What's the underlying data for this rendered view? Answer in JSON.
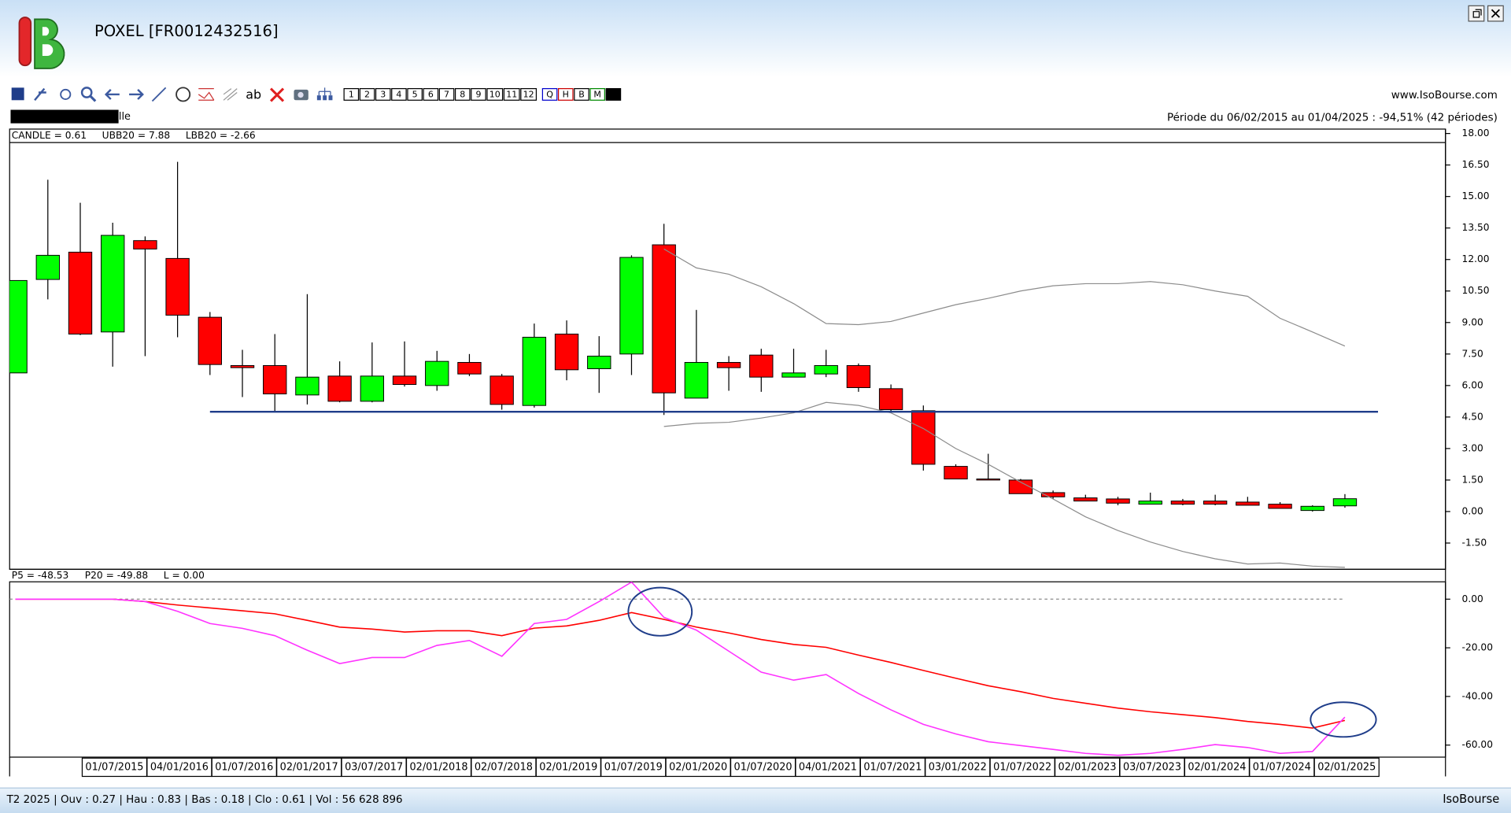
{
  "header": {
    "title": "POXEL [FR0012432516]",
    "website": "www.IsoBourse.com",
    "periodicity": "Périodicité Trimestrielle",
    "period": "Période du 06/02/2015 au 01/04/2025 : -94,51% (42 périodes)"
  },
  "toolbar": {
    "buttons": [
      "1",
      "2",
      "3",
      "4",
      "5",
      "6",
      "7",
      "8",
      "9",
      "10",
      "11",
      "12",
      "Q",
      "H",
      "B",
      "M",
      "T"
    ]
  },
  "chart_data": [
    {
      "type": "candlestick",
      "candle_label": "CANDLE = 0.61",
      "categories": [
        null,
        null,
        "01/07/2015",
        null,
        "04/01/2016",
        null,
        "01/07/2016",
        null,
        "02/01/2017",
        null,
        "03/07/2017",
        null,
        "02/01/2018",
        null,
        "02/07/2018",
        null,
        "02/01/2019",
        null,
        "01/07/2019",
        null,
        "02/01/2020",
        null,
        "01/07/2020",
        null,
        "04/01/2021",
        null,
        "01/07/2021",
        null,
        "03/01/2022",
        null,
        "01/07/2022",
        null,
        "02/01/2023",
        null,
        "03/07/2023",
        null,
        "02/01/2024",
        null,
        "01/07/2024",
        null,
        "02/01/2025",
        null
      ],
      "open": [
        6.6,
        11.05,
        12.35,
        8.55,
        12.9,
        12.05,
        9.25,
        6.95,
        6.95,
        5.55,
        6.45,
        5.25,
        6.45,
        6.0,
        7.1,
        6.45,
        5.05,
        8.45,
        6.8,
        7.5,
        12.7,
        5.4,
        7.1,
        7.45,
        6.4,
        6.55,
        6.95,
        5.85,
        4.8,
        2.15,
        1.55,
        1.5,
        0.9,
        0.65,
        0.6,
        0.35,
        0.5,
        0.5,
        0.45,
        0.35,
        0.05,
        0.27
      ],
      "high": [
        11.0,
        15.8,
        14.7,
        13.75,
        13.1,
        16.65,
        9.5,
        7.7,
        8.45,
        10.35,
        7.15,
        8.05,
        8.1,
        7.65,
        7.5,
        6.55,
        8.95,
        9.1,
        8.35,
        12.2,
        13.7,
        9.6,
        7.4,
        7.75,
        7.75,
        7.7,
        7.05,
        6.05,
        5.05,
        2.25,
        2.75,
        1.55,
        1.0,
        0.8,
        0.7,
        0.9,
        0.6,
        0.8,
        0.7,
        0.45,
        0.3,
        0.83
      ],
      "low": [
        6.6,
        10.1,
        8.4,
        6.9,
        7.4,
        8.3,
        6.5,
        5.45,
        4.75,
        5.1,
        5.2,
        5.2,
        5.95,
        5.75,
        6.45,
        4.85,
        4.95,
        6.25,
        5.65,
        6.5,
        4.6,
        5.4,
        5.75,
        5.7,
        6.4,
        6.4,
        5.7,
        4.7,
        1.95,
        1.55,
        1.5,
        0.85,
        0.6,
        0.5,
        0.3,
        0.35,
        0.3,
        0.3,
        0.3,
        0.15,
        0.0,
        0.18
      ],
      "close": [
        11.0,
        12.2,
        8.45,
        13.15,
        12.5,
        9.35,
        7.0,
        6.85,
        5.6,
        6.4,
        5.25,
        6.45,
        6.05,
        7.15,
        6.55,
        5.1,
        8.3,
        6.75,
        7.4,
        12.1,
        5.65,
        7.1,
        6.85,
        6.4,
        6.6,
        6.95,
        5.9,
        4.85,
        2.25,
        1.55,
        1.5,
        0.85,
        0.7,
        0.5,
        0.4,
        0.5,
        0.35,
        0.35,
        0.3,
        0.15,
        0.25,
        0.61
      ],
      "up_color": "#00ff00",
      "down_color": "#ff0000",
      "series": [
        {
          "name": "UBB20 = 7.88",
          "color": "#8c8c8c",
          "values": [
            null,
            null,
            null,
            null,
            null,
            null,
            null,
            null,
            null,
            null,
            null,
            null,
            null,
            null,
            null,
            null,
            null,
            null,
            null,
            null,
            12.5,
            11.6,
            11.3,
            10.7,
            9.9,
            8.95,
            8.9,
            9.05,
            9.45,
            9.85,
            10.15,
            10.5,
            10.75,
            10.85,
            10.85,
            10.95,
            10.8,
            10.5,
            10.25,
            9.2,
            8.55,
            7.88
          ]
        },
        {
          "name": "LBB20 = -2.66",
          "color": "#8c8c8c",
          "values": [
            null,
            null,
            null,
            null,
            null,
            null,
            null,
            null,
            null,
            null,
            null,
            null,
            null,
            null,
            null,
            null,
            null,
            null,
            null,
            null,
            4.05,
            4.2,
            4.25,
            4.45,
            4.7,
            5.2,
            5.05,
            4.7,
            3.95,
            3.0,
            2.25,
            1.4,
            0.6,
            -0.25,
            -0.9,
            -1.45,
            -1.9,
            -2.25,
            -2.5,
            -2.45,
            -2.6,
            -2.66
          ]
        }
      ],
      "support_level": 4.75,
      "support_color": "#1f3d8a",
      "ylim": [
        -2.75,
        18.21
      ],
      "yticks": [
        {
          "value": 18,
          "label": "18.00"
        },
        {
          "value": 16.5,
          "label": "16.50"
        },
        {
          "value": 15,
          "label": "15.00"
        },
        {
          "value": 13.5,
          "label": "13.50"
        },
        {
          "value": 12,
          "label": "12.00"
        },
        {
          "value": 10.5,
          "label": "10.50"
        },
        {
          "value": 9,
          "label": "9.00"
        },
        {
          "value": 7.5,
          "label": "7.50"
        },
        {
          "value": 6,
          "label": "6.00"
        },
        {
          "value": 4.5,
          "label": "4.50"
        },
        {
          "value": 3,
          "label": "3.00"
        },
        {
          "value": 1.5,
          "label": "1.50"
        },
        {
          "value": 0,
          "label": "0.00"
        },
        {
          "value": -1.5,
          "label": "-1.50"
        }
      ]
    },
    {
      "type": "line",
      "series": [
        {
          "name": "P5 = -48.53",
          "color": "#ff33ff",
          "values": [
            0,
            0,
            0,
            0,
            -1,
            -5,
            -10,
            -12,
            -15,
            -21,
            -26.5,
            -24,
            -24,
            -19,
            -17,
            -23.5,
            -10,
            -8.3,
            -1,
            7,
            -7.5,
            -12.7,
            -21.4,
            -30,
            -33.3,
            -31,
            -38.8,
            -45.5,
            -51.5,
            -55.4,
            -58.6,
            -60.2,
            -61.8,
            -63.4,
            -64.2,
            -63.4,
            -61.8,
            -59.8,
            -61,
            -63.4,
            -62.6,
            -48.53
          ]
        },
        {
          "name": "P20 = -49.88",
          "color": "#ff0000",
          "values": [
            0,
            0,
            0,
            0,
            -1,
            -2.4,
            -3.6,
            -4.8,
            -6,
            -8.7,
            -11.5,
            -12.3,
            -13.5,
            -13,
            -13,
            -15,
            -11.9,
            -11,
            -8.7,
            -5.5,
            -8.3,
            -11.5,
            -13.9,
            -16.6,
            -18.6,
            -19.8,
            -23,
            -26,
            -29.3,
            -32.5,
            -35.6,
            -38,
            -40.8,
            -42.8,
            -44.8,
            -46.3,
            -47.5,
            -48.7,
            -50.3,
            -51.5,
            -53,
            -49.88
          ]
        }
      ],
      "reference": {
        "name": "L = 0.00",
        "value": 0,
        "color": "#8c8c8c"
      },
      "ylim": [
        -64.95,
        7.13
      ],
      "yticks": [
        {
          "value": 0,
          "label": "0.00"
        },
        {
          "value": -20,
          "label": "-20.00"
        },
        {
          "value": -40,
          "label": "-40.00"
        },
        {
          "value": -60,
          "label": "-60.00"
        }
      ]
    }
  ],
  "status": {
    "text": "T2 2025 | Ouv : 0.27 | Hau : 0.83 | Bas : 0.18 | Clo : 0.61 | Vol : 56 628 896",
    "brand": "IsoBourse"
  }
}
